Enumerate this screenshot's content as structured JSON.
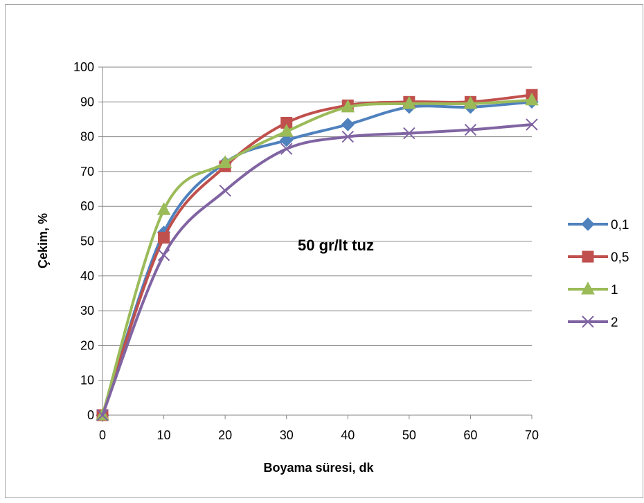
{
  "chart_data": {
    "type": "line",
    "title": "",
    "annotation": "50 gr/lt tuz",
    "xlabel": "Boyama süresi, dk",
    "ylabel": "Çekim, %",
    "x": [
      0,
      10,
      20,
      30,
      40,
      50,
      60,
      70
    ],
    "x_ticks": [
      "0",
      "10",
      "20",
      "30",
      "40",
      "50",
      "60",
      "70"
    ],
    "y_ticks": [
      "0",
      "10",
      "20",
      "30",
      "40",
      "50",
      "60",
      "70",
      "80",
      "90",
      "100"
    ],
    "xlim": [
      0,
      70
    ],
    "ylim": [
      0,
      100
    ],
    "grid": "horizontal",
    "legend_position": "right",
    "smoothed": true,
    "series": [
      {
        "name": "0,1",
        "color": "#4F81BD",
        "marker": "diamond",
        "values": [
          0,
          52.5,
          72.5,
          79,
          83.5,
          88.5,
          88.5,
          90
        ]
      },
      {
        "name": "0,5",
        "color": "#C0504D",
        "marker": "square",
        "values": [
          0,
          51,
          71.5,
          84,
          89,
          90,
          90,
          92
        ]
      },
      {
        "name": "1",
        "color": "#9BBB59",
        "marker": "triangle",
        "values": [
          0,
          59,
          72.5,
          81.5,
          88.5,
          89.5,
          89.5,
          90.5
        ]
      },
      {
        "name": "2",
        "color": "#8064A2",
        "marker": "x",
        "values": [
          0,
          46,
          64.5,
          76.5,
          80,
          81,
          82,
          83.5
        ]
      }
    ]
  }
}
